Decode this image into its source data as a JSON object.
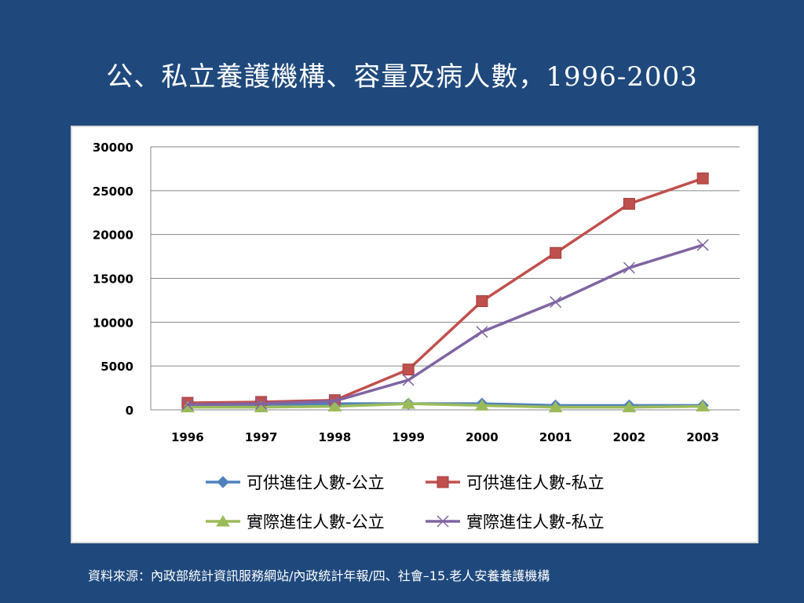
{
  "slide": {
    "title": "公、私立養護機構、容量及病人數，1996-2003",
    "source": "資料來源：內政部統計資訊服務網站/內政統計年報/四、社會–15.老人安養養護機構"
  },
  "colors": {
    "background": "#1f497d",
    "series": [
      "#4f81bd",
      "#c0504d",
      "#9bbb59",
      "#8064a2"
    ]
  },
  "chart_data": {
    "type": "line",
    "title": "",
    "xlabel": "",
    "ylabel": "",
    "categories": [
      "1996",
      "1997",
      "1998",
      "1999",
      "2000",
      "2001",
      "2002",
      "2003"
    ],
    "ylim": [
      0,
      30000
    ],
    "yticks": [
      "30000",
      "25000",
      "20000",
      "15000",
      "10000",
      "5000",
      "0"
    ],
    "grid": true,
    "legend_position": "bottom",
    "series": [
      {
        "name": "可供進住人數-公立",
        "marker": "diamond",
        "values": [
          500,
          600,
          700,
          700,
          700,
          500,
          500,
          500
        ]
      },
      {
        "name": "可供進住人數-私立",
        "marker": "square",
        "values": [
          800,
          900,
          1100,
          4600,
          12400,
          17900,
          23500,
          26400
        ]
      },
      {
        "name": "實際進住人數-公立",
        "marker": "triangle",
        "values": [
          300,
          300,
          400,
          700,
          500,
          300,
          300,
          400
        ]
      },
      {
        "name": "實際進住人數-私立",
        "marker": "x",
        "values": [
          600,
          700,
          1000,
          3400,
          8900,
          12300,
          16200,
          18800
        ]
      }
    ]
  }
}
